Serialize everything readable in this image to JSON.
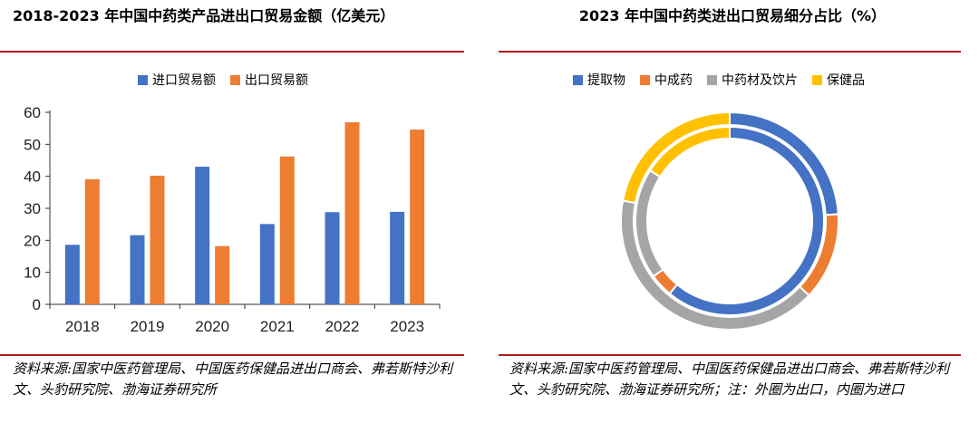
{
  "left": {
    "title": "2018-2023 年中国中药类产品进出口贸易金额（亿美元）",
    "source": "资料来源:国家中医药管理局、中国医药保健品进出口商会、弗若斯特沙利文、头豹研究院、渤海证券研究所"
  },
  "right": {
    "title": "2023 年中国中药类进出口贸易细分占比（%）",
    "source": "资料来源:国家中医药管理局、中国医药保健品进出口商会、弗若斯特沙利文、头豹研究院、渤海证券研究所；注：外圈为出口，内圈为进口"
  },
  "colors": {
    "blue": "#4472c4",
    "orange": "#ed7d31",
    "gray": "#a5a5a5",
    "yellow": "#ffc000",
    "rule": "#b01c1c"
  },
  "chart_data": [
    {
      "type": "bar",
      "title": "2018-2023 年中国中药类产品进出口贸易金额（亿美元）",
      "categories": [
        "2018",
        "2019",
        "2020",
        "2021",
        "2022",
        "2023"
      ],
      "series": [
        {
          "name": "进口贸易额",
          "color": "#4472c4",
          "values": [
            18.6,
            21.6,
            43.0,
            25.1,
            28.8,
            28.9
          ]
        },
        {
          "name": "出口贸易额",
          "color": "#ed7d31",
          "values": [
            39.1,
            40.2,
            18.2,
            46.2,
            56.9,
            54.6
          ]
        }
      ],
      "ylim": [
        0,
        60
      ],
      "yticks": [
        0,
        10,
        20,
        30,
        40,
        50,
        60
      ],
      "legend": "top-center",
      "grid": false
    },
    {
      "type": "pie",
      "subtype": "double-donut",
      "title": "2023 年中国中药类进出口贸易细分占比（%）",
      "categories": [
        "提取物",
        "中成药",
        "中药材及饮片",
        "保健品"
      ],
      "colors": [
        "#4472c4",
        "#ed7d31",
        "#a5a5a5",
        "#ffc000"
      ],
      "series": [
        {
          "name": "出口",
          "ring": "outer",
          "values": [
            24,
            13,
            41,
            22
          ]
        },
        {
          "name": "进口",
          "ring": "inner",
          "values": [
            61,
            4,
            19,
            16
          ]
        }
      ],
      "note": "外圈为出口，内圈为进口",
      "legend": "top-center"
    }
  ]
}
